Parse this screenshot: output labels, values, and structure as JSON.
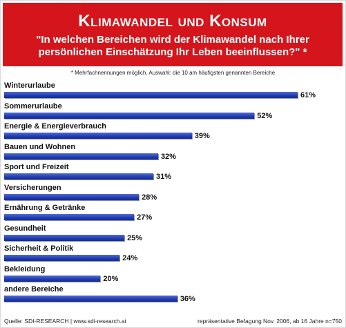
{
  "banner": {
    "title": "Klimawandel und Konsum",
    "question": "\"In welchen Bereichen wird der Klimawandel nach Ihrer persönlichen Einschätzung Ihr Leben beeinflussen?\" *"
  },
  "note": "* Mehrfachnennungen möglich. Auswahl: die 10 am häufigsten genannten Bereiche",
  "chart_data": {
    "type": "bar",
    "orientation": "horizontal",
    "categories": [
      "Winterurlaube",
      "Sommerurlaube",
      "Energie & Energieverbrauch",
      "Bauen und Wohnen",
      "Sport und Freizeit",
      "Versicherungen",
      "Ernährung & Getränke",
      "Gesundheit",
      "Sicherheit & Politik",
      "Bekleidung",
      "andere Bereiche"
    ],
    "values": [
      61,
      52,
      39,
      32,
      31,
      28,
      27,
      25,
      24,
      20,
      36
    ],
    "value_labels": [
      "61%",
      "52%",
      "39%",
      "32%",
      "31%",
      "28%",
      "27%",
      "25%",
      "24%",
      "20%",
      "36%"
    ],
    "unit": "%",
    "bar_color": "#2a45b8"
  },
  "footer": {
    "source": "Quelle: SDI-RESEARCH  |  www.sdi-research.at",
    "survey": "repräsentative Befagung Nov. 2006, ab 16 Jahre n=750"
  },
  "colors": {
    "banner": "#d4161c",
    "bar": "#2a45b8"
  }
}
